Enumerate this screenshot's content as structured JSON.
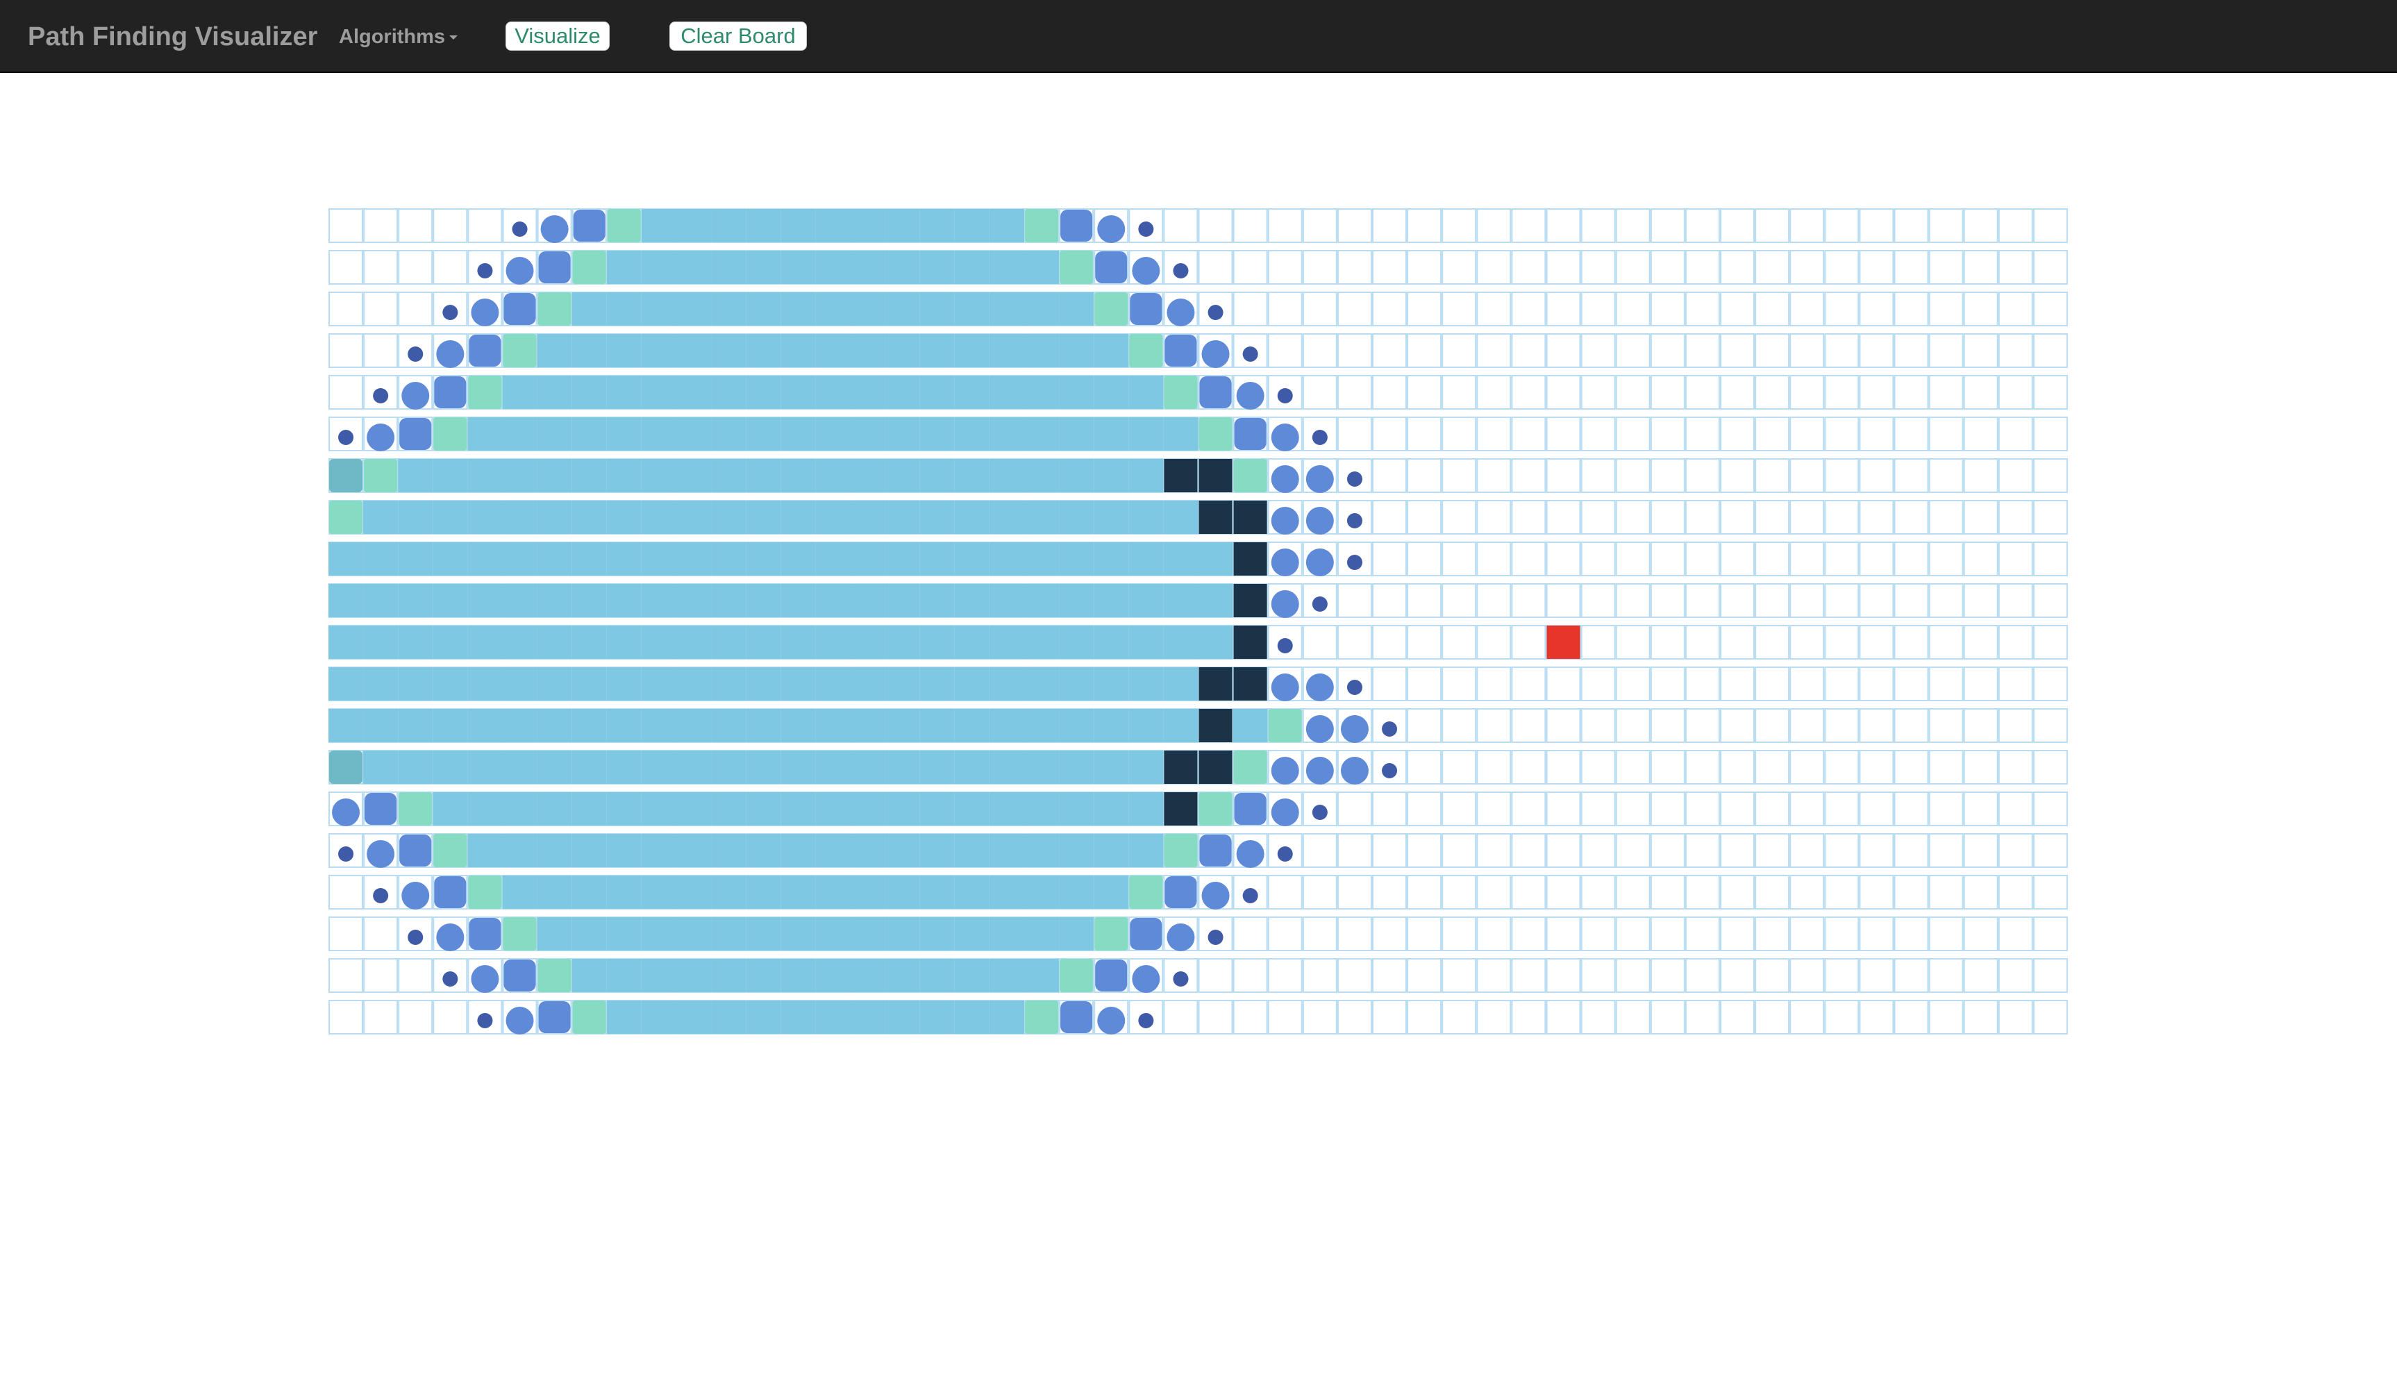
{
  "navbar": {
    "brand": "Path Finding Visualizer",
    "algorithms_label": "Algorithms",
    "visualize_label": "Visualize",
    "clear_label": "Clear Board"
  },
  "grid": {
    "rows": 20,
    "cols": 50,
    "target": {
      "row": 10,
      "col": 35
    },
    "walls": [
      [
        6,
        24
      ],
      [
        6,
        25
      ],
      [
        7,
        25
      ],
      [
        7,
        26
      ],
      [
        8,
        26
      ],
      [
        9,
        26
      ],
      [
        10,
        26
      ],
      [
        11,
        25
      ],
      [
        11,
        26
      ],
      [
        12,
        25
      ],
      [
        13,
        24
      ],
      [
        13,
        25
      ],
      [
        14,
        24
      ]
    ],
    "colors": {
      "visited": "#7ec8e3",
      "frontier_green": "#86dcc3",
      "frontier_teal": "#6fb8c5",
      "frontier_blue": "#5f8ad8",
      "frontier_dot": "#3f5aa7",
      "wall": "#1b3347",
      "target": "#e8352b",
      "cell_border": "#b8dcf2"
    }
  }
}
